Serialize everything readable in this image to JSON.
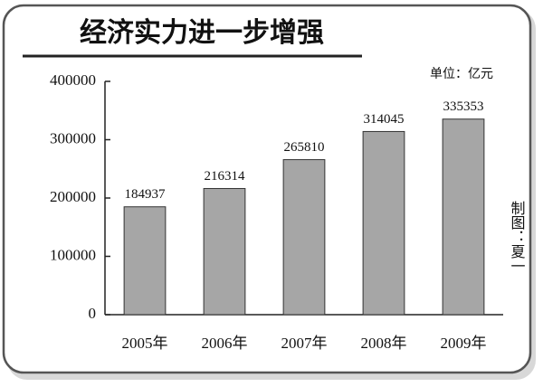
{
  "chart_data": {
    "type": "bar",
    "title": "经济实力进一步增强",
    "annotations": [
      "单位：亿元",
      "制图：夏一"
    ],
    "categories": [
      "2005年",
      "2006年",
      "2007年",
      "2008年",
      "2009年"
    ],
    "values": [
      184937,
      216314,
      265810,
      314045,
      335353
    ],
    "color": "#a6a6a6",
    "ylim": [
      0,
      400000
    ],
    "yticks": [
      0,
      100000,
      200000,
      300000,
      400000
    ],
    "grid": false
  }
}
